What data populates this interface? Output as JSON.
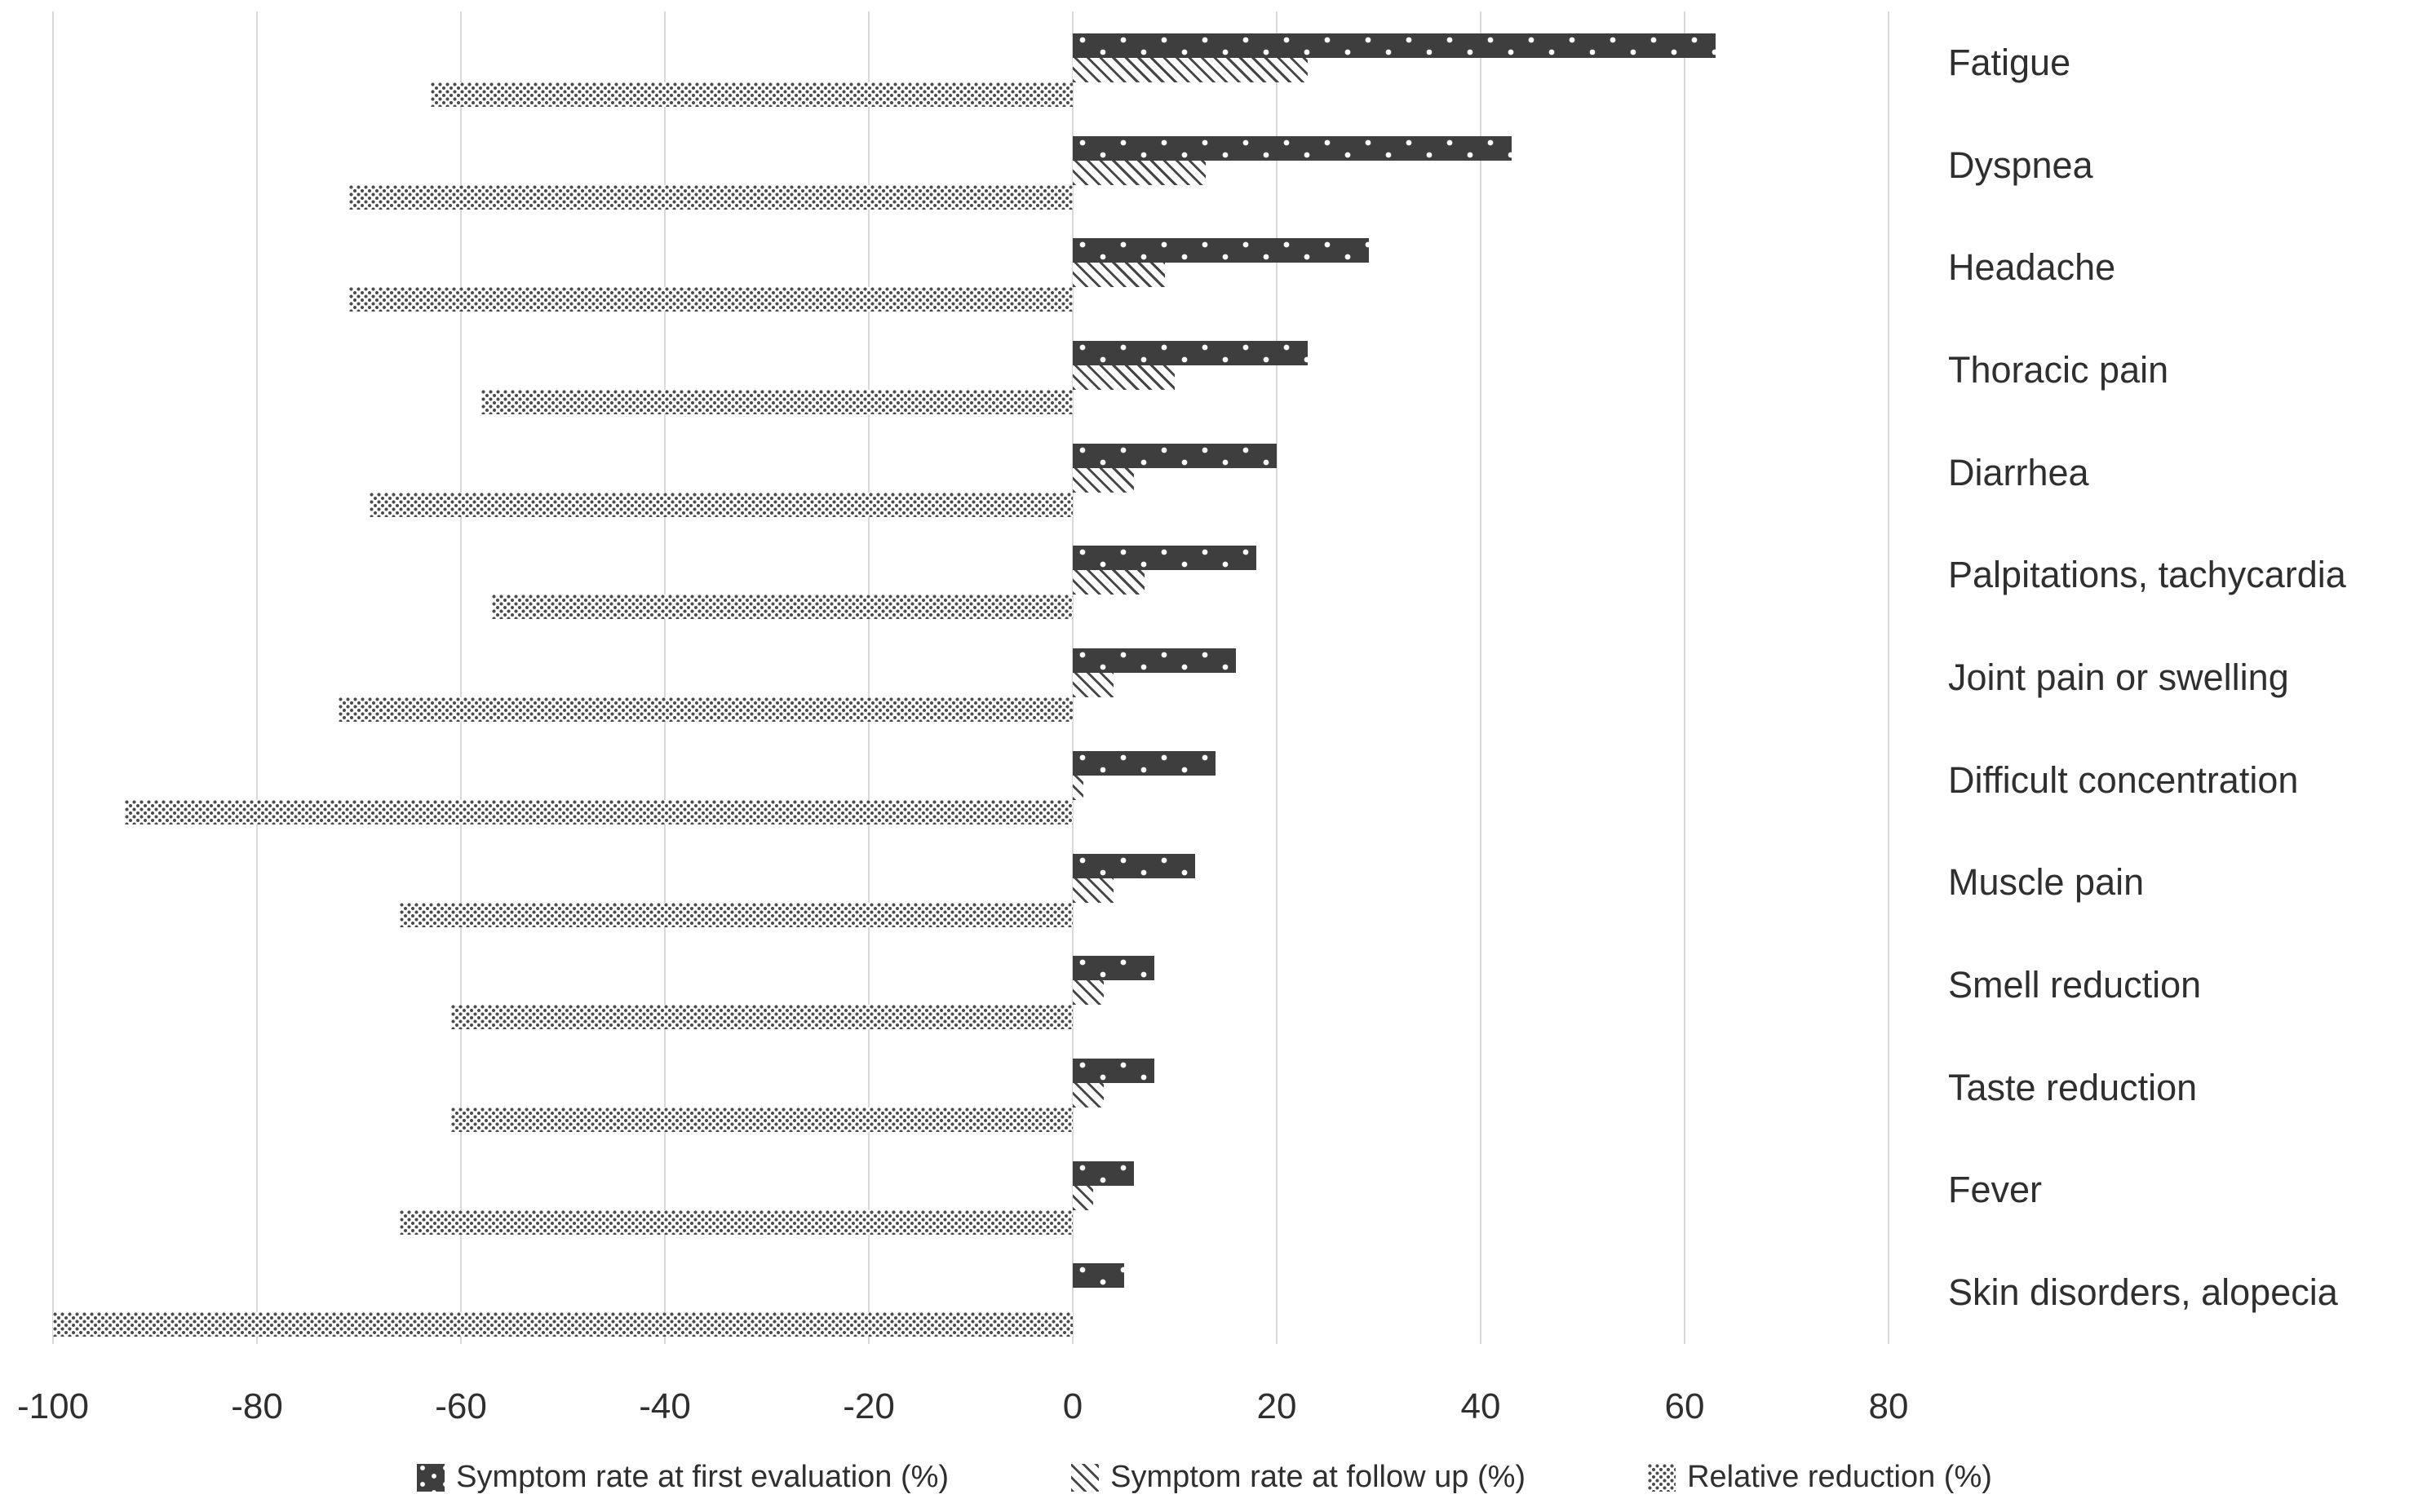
{
  "chart_data": {
    "type": "bar",
    "orientation": "horizontal",
    "title": "",
    "categories": [
      "Fatigue",
      "Dyspnea",
      "Headache",
      "Thoracic pain",
      "Diarrhea",
      "Palpitations, tachycardia",
      "Joint pain or swelling",
      "Difficult concentration",
      "Muscle pain",
      "Smell reduction",
      "Taste reduction",
      "Fever",
      "Skin disorders, alopecia"
    ],
    "series": [
      {
        "name": "Symptom rate at first evaluation (%)",
        "pattern": "dark-dotted",
        "values": [
          63,
          43,
          29,
          23,
          20,
          18,
          16,
          14,
          12,
          8,
          8,
          6,
          5
        ]
      },
      {
        "name": "Symptom rate at follow up (%)",
        "pattern": "diagonal-hatch",
        "values": [
          23,
          13,
          9,
          10,
          6,
          7,
          4,
          1,
          4,
          3,
          3,
          2,
          0
        ]
      },
      {
        "name": "Relative reduction (%)",
        "pattern": "light-dotted",
        "values": [
          -63,
          -71,
          -71,
          -58,
          -69,
          -57,
          -72,
          -93,
          -66,
          -61,
          -61,
          -66,
          -100
        ]
      }
    ],
    "x_ticks": [
      -100,
      -80,
      -60,
      -40,
      -20,
      0,
      20,
      40,
      60,
      80
    ],
    "xlim": [
      -100,
      80
    ],
    "grid": "vertical-gridlines",
    "legend_position": "bottom",
    "colors": {
      "bar_ink": "#3e3e3e",
      "gridline": "#d9d9d9",
      "text": "#2f2f2f",
      "background": "#ffffff"
    }
  }
}
